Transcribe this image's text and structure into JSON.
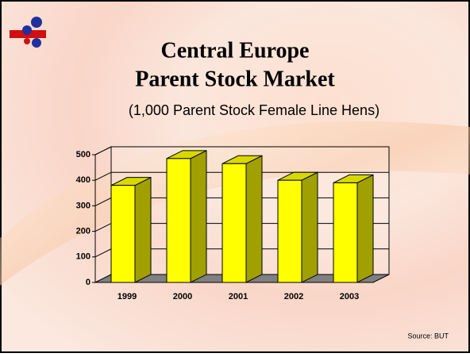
{
  "chart_data": {
    "type": "bar3d",
    "title_lines": [
      "Central Europe",
      "Parent Stock Market"
    ],
    "subtitle": "(1,000 Parent Stock Female Line Hens)",
    "categories": [
      "1999",
      "2000",
      "2001",
      "2002",
      "2003"
    ],
    "values": [
      380,
      485,
      465,
      400,
      390
    ],
    "color": "#ffff00",
    "ylim": [
      0,
      500
    ],
    "yticks": [
      0,
      100,
      200,
      300,
      400,
      500
    ],
    "grid": true,
    "source": "Source:  BUT"
  }
}
